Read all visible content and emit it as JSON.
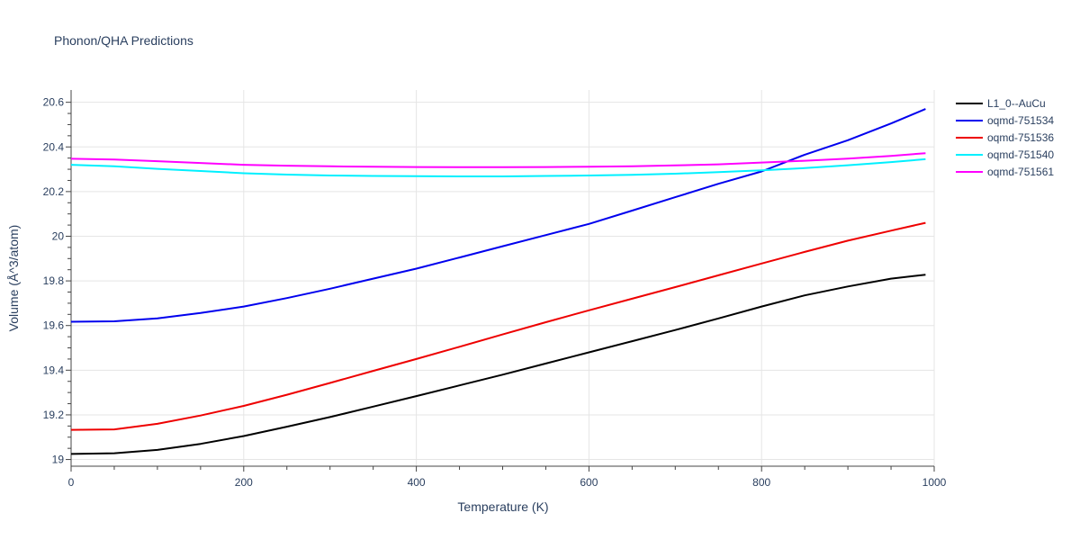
{
  "chart_data": {
    "type": "line",
    "title": "Phonon/QHA Predictions",
    "xlabel": "Temperature (K)",
    "ylabel": "Volume (Å^3/atom)",
    "xlim": [
      0,
      1000
    ],
    "ylim": [
      18.97,
      20.655
    ],
    "xticks": [
      0,
      200,
      400,
      600,
      800,
      1000
    ],
    "xtick_labels": [
      "0",
      "200",
      "400",
      "600",
      "800",
      "1000"
    ],
    "yticks": [
      19,
      19.2,
      19.4,
      19.6,
      19.8,
      20,
      20.2,
      20.4,
      20.6
    ],
    "ytick_labels": [
      "19",
      "19.2",
      "19.4",
      "19.6",
      "19.8",
      "20",
      "20.2",
      "20.4",
      "20.6"
    ],
    "grid": true,
    "legend_position": "top-right",
    "series": [
      {
        "name": "L1_0--AuCu",
        "color": "#000000",
        "x": [
          0,
          50,
          100,
          150,
          200,
          250,
          300,
          350,
          400,
          450,
          500,
          550,
          600,
          650,
          700,
          750,
          800,
          850,
          900,
          950,
          990
        ],
        "y": [
          19.025,
          19.028,
          19.043,
          19.07,
          19.105,
          19.147,
          19.19,
          19.237,
          19.284,
          19.332,
          19.38,
          19.43,
          19.48,
          19.53,
          19.58,
          19.632,
          19.685,
          19.735,
          19.775,
          19.81,
          19.828
        ]
      },
      {
        "name": "oqmd-751534",
        "color": "#0000ee",
        "x": [
          0,
          50,
          100,
          150,
          200,
          250,
          300,
          350,
          400,
          450,
          500,
          550,
          600,
          650,
          700,
          750,
          800,
          850,
          900,
          950,
          990
        ],
        "y": [
          19.617,
          19.619,
          19.632,
          19.656,
          19.685,
          19.723,
          19.765,
          19.81,
          19.855,
          19.905,
          19.955,
          20.005,
          20.055,
          20.115,
          20.175,
          20.235,
          20.29,
          20.365,
          20.43,
          20.505,
          20.57
        ]
      },
      {
        "name": "oqmd-751536",
        "color": "#ee0000",
        "x": [
          0,
          50,
          100,
          150,
          200,
          250,
          300,
          350,
          400,
          450,
          500,
          550,
          600,
          650,
          700,
          750,
          800,
          850,
          900,
          950,
          990
        ],
        "y": [
          19.133,
          19.135,
          19.16,
          19.197,
          19.24,
          19.29,
          19.343,
          19.397,
          19.45,
          19.505,
          19.56,
          19.615,
          19.668,
          19.72,
          19.772,
          19.825,
          19.878,
          19.93,
          19.98,
          20.025,
          20.06
        ]
      },
      {
        "name": "oqmd-751540",
        "color": "#00f0ff",
        "x": [
          0,
          50,
          100,
          150,
          200,
          250,
          300,
          350,
          400,
          450,
          500,
          550,
          600,
          650,
          700,
          750,
          800,
          850,
          900,
          950,
          990
        ],
        "y": [
          20.32,
          20.313,
          20.302,
          20.292,
          20.282,
          20.276,
          20.272,
          20.27,
          20.269,
          20.268,
          20.268,
          20.27,
          20.272,
          20.275,
          20.28,
          20.287,
          20.295,
          20.305,
          20.318,
          20.332,
          20.345
        ]
      },
      {
        "name": "oqmd-751561",
        "color": "#ff00ff",
        "x": [
          0,
          50,
          100,
          150,
          200,
          250,
          300,
          350,
          400,
          450,
          500,
          550,
          600,
          650,
          700,
          750,
          800,
          850,
          900,
          950,
          990
        ],
        "y": [
          20.347,
          20.344,
          20.336,
          20.328,
          20.32,
          20.316,
          20.313,
          20.311,
          20.31,
          20.309,
          20.309,
          20.31,
          20.311,
          20.313,
          20.317,
          20.322,
          20.33,
          20.338,
          20.348,
          20.36,
          20.372
        ]
      }
    ]
  }
}
